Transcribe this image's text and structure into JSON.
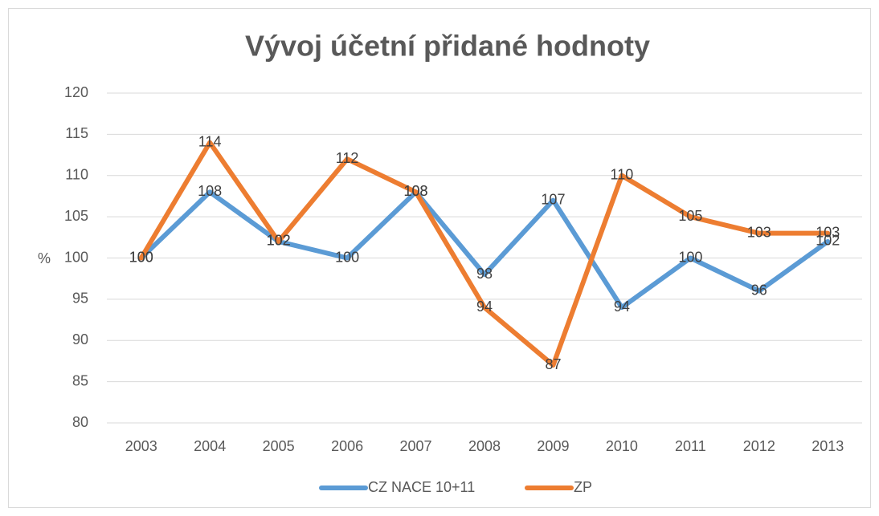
{
  "chart_data": {
    "type": "line",
    "title": "Vývoj účetní přidané hodnoty",
    "y_label": "%",
    "categories": [
      "2003",
      "2004",
      "2005",
      "2006",
      "2007",
      "2008",
      "2009",
      "2010",
      "2011",
      "2012",
      "2013"
    ],
    "series": [
      {
        "name": "CZ NACE 10+11",
        "color": "#5b9bd5",
        "values": [
          100,
          108,
          102,
          100,
          108,
          98,
          107,
          94,
          100,
          96,
          102
        ]
      },
      {
        "name": "ZP",
        "color": "#ed7d31",
        "values": [
          100,
          114,
          102,
          112,
          108,
          94,
          87,
          110,
          105,
          103,
          103
        ]
      }
    ],
    "ylim": [
      80,
      120
    ],
    "yticks": [
      80,
      85,
      90,
      95,
      100,
      105,
      110,
      115,
      120
    ],
    "grid": true,
    "legend": "bottom"
  }
}
